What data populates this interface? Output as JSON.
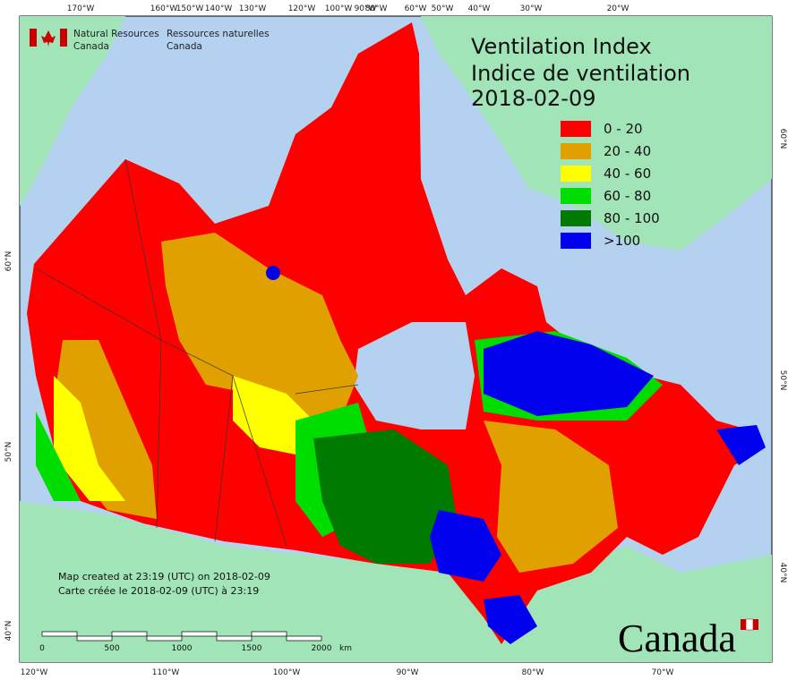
{
  "header": {
    "agency_en": [
      "Natural Resources",
      "Canada"
    ],
    "agency_fr": [
      "Ressources naturelles",
      "Canada"
    ]
  },
  "title": [
    "Ventilation Index",
    "Indice de ventilation",
    "2018-02-09"
  ],
  "legend": [
    {
      "label": "0 - 20",
      "color": "#ff0000"
    },
    {
      "label": "20 - 40",
      "color": "#e0a000"
    },
    {
      "label": "40 - 60",
      "color": "#ffff00"
    },
    {
      "label": "60 - 80",
      "color": "#00dd00"
    },
    {
      "label": "80 - 100",
      "color": "#007a00"
    },
    {
      "label": ">100",
      "color": "#0000ee"
    }
  ],
  "top_labels": [
    "170°W",
    "160°W",
    "150°W",
    "140°W",
    "130°W",
    "120°W",
    "100°W",
    "90°W",
    "80°W",
    "60°W",
    "50°W",
    "40°W",
    "30°W",
    "20°W"
  ],
  "bottom_labels": [
    "120°W",
    "110°W",
    "100°W",
    "90°W",
    "80°W",
    "70°W"
  ],
  "left_labels": [
    "60°N",
    "50°N",
    "40°N"
  ],
  "right_labels": [
    "60°N",
    "50°N",
    "40°N"
  ],
  "credits": [
    "Map created at 23:19 (UTC) on 2018-02-09",
    "Carte créée le 2018-02-09 (UTC) à 23:19"
  ],
  "scale_bar": {
    "labels": [
      "0",
      "500",
      "1000",
      "1500",
      "2000"
    ],
    "unit": "km"
  },
  "wordmark": "Canada"
}
